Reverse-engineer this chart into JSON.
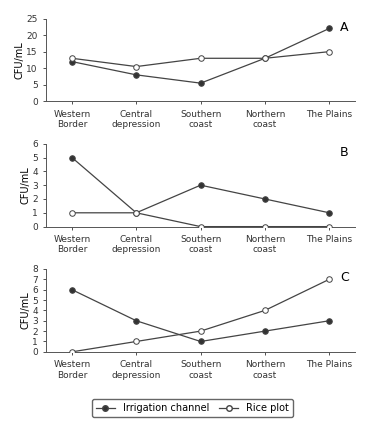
{
  "categories": [
    "Western\nBorder",
    "Central\ndepression",
    "Southern\ncoast",
    "Northern\ncoast",
    "The Plains"
  ],
  "panel_A": {
    "label": "A",
    "irrigation_channel": [
      12,
      8,
      5.5,
      13,
      22
    ],
    "rice_plot": [
      13,
      10.5,
      13,
      13,
      15
    ],
    "ylim": [
      0,
      25
    ],
    "yticks": [
      0,
      5,
      10,
      15,
      20,
      25
    ]
  },
  "panel_B": {
    "label": "B",
    "irrigation_channel": [
      5,
      1,
      3,
      2,
      1
    ],
    "rice_plot": [
      1,
      1,
      0,
      0,
      0
    ],
    "ylim": [
      0,
      6
    ],
    "yticks": [
      0,
      1,
      2,
      3,
      4,
      5,
      6
    ]
  },
  "panel_C": {
    "label": "C",
    "irrigation_channel": [
      6,
      3,
      1,
      2,
      3
    ],
    "rice_plot": [
      0,
      1,
      2,
      4,
      7
    ],
    "ylim": [
      0,
      8
    ],
    "yticks": [
      0,
      1,
      2,
      3,
      4,
      5,
      6,
      7,
      8
    ]
  },
  "ylabel": "CFU/mL",
  "line_color": "#444444",
  "irrigation_marker_fill": "#333333",
  "rice_marker_fill": "white",
  "legend_labels": [
    "Irrigation channel",
    "Rice plot"
  ],
  "background_color": "#ffffff",
  "fontsize_label": 7,
  "fontsize_tick": 6.5,
  "fontsize_panel": 9,
  "fontsize_legend": 7
}
